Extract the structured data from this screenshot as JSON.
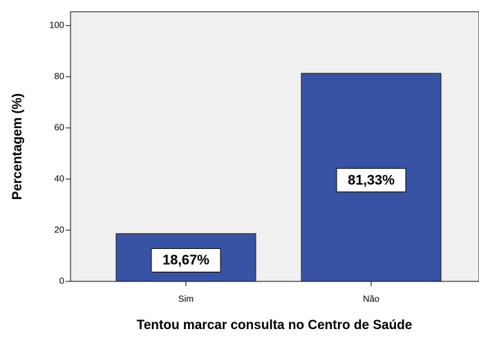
{
  "chart_data": {
    "type": "bar",
    "categories": [
      "Sim",
      "Não"
    ],
    "values": [
      18.67,
      81.33
    ],
    "value_labels": [
      "18,67%",
      "81,33%"
    ],
    "color": "#3953a4",
    "ylabel": "Percentagem (%)",
    "xlabel": "Tentou marcar consulta no Centro de Saúde",
    "ylim": [
      0,
      105.4
    ],
    "yticks": [
      0,
      20,
      40,
      60,
      80,
      100
    ]
  }
}
